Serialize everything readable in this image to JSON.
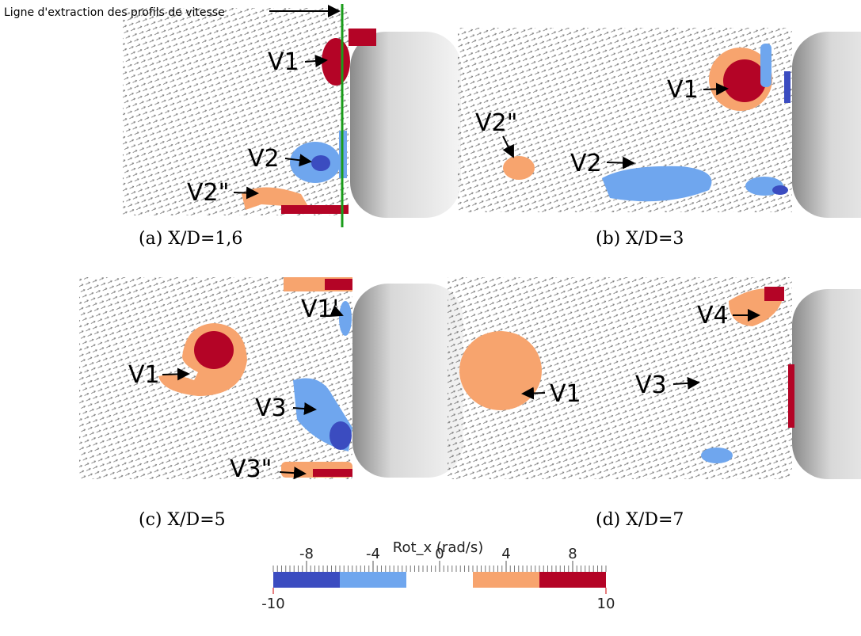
{
  "annotation": "Ligne d'extraction des profils de vitesse",
  "panels": [
    {
      "caption": "(a) X/D=1,6",
      "labels": [
        "V1",
        "V2",
        "V2\""
      ]
    },
    {
      "caption": "(b) X/D=3",
      "labels": [
        "V1",
        "V2\"",
        "V2"
      ]
    },
    {
      "caption": "(c) X/D=5",
      "labels": [
        "V1'",
        "V1",
        "V3",
        "V3\""
      ]
    },
    {
      "caption": "(d) X/D=7",
      "labels": [
        "V4",
        "V3",
        "V1"
      ]
    }
  ],
  "colorbar": {
    "title": "Rot_x (rad/s)",
    "lim": [
      -10,
      10
    ],
    "ticks_above": [
      -8,
      -4,
      0,
      4,
      8
    ],
    "ticks_below": [
      -10,
      10
    ],
    "bands": [
      {
        "from": -10,
        "to": -6,
        "color": "#3b4cc0"
      },
      {
        "from": -6,
        "to": -2,
        "color": "#6fa6ee"
      },
      {
        "from": -2,
        "to": 2,
        "color": "#ffffff"
      },
      {
        "from": 2,
        "to": 6,
        "color": "#f7a46e"
      },
      {
        "from": 6,
        "to": 10,
        "color": "#b40426"
      }
    ]
  }
}
